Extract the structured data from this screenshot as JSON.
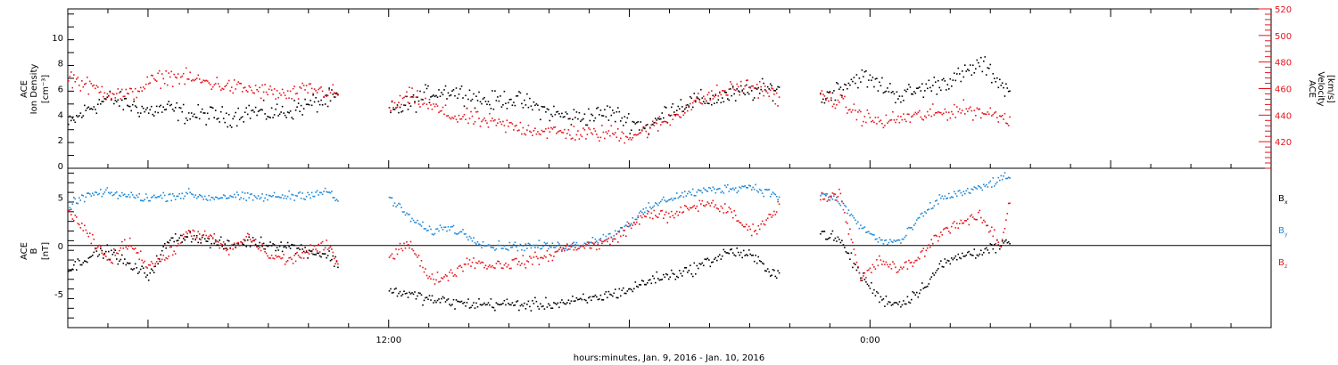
{
  "xlabel": "hours:minutes, Jan.  9, 2016 - Jan. 10, 2016",
  "colors": {
    "black": "#000000",
    "red": "#e8141b",
    "blue": "#1e88d8"
  },
  "chart_data": [
    {
      "type": "scatter",
      "panel": "top",
      "xlim": [
        0,
        30
      ],
      "x_tick_labels": [
        {
          "x": 8,
          "label": "12:00"
        },
        {
          "x": 20,
          "label": "0:00"
        }
      ],
      "left_axis": {
        "label_lines": [
          "ACE",
          "Ion Density"
        ],
        "unit": "[cm⁻³]",
        "ylim": [
          -0.2,
          12.2
        ],
        "ticks": [
          0,
          2,
          4,
          6,
          8,
          10
        ],
        "color": "#000000"
      },
      "right_axis": {
        "label_lines": [
          "ACE",
          "Velocity"
        ],
        "unit": "[km/s]",
        "ylim": [
          400,
          520
        ],
        "ticks": [
          420,
          440,
          460,
          480,
          500,
          520
        ],
        "color": "#e8141b"
      },
      "series": [
        {
          "axis": "left",
          "color": "#000000",
          "spread": 1.1,
          "density": 30,
          "segments": [
            {
              "x": [
                0,
                0.5,
                1,
                1.5,
                2,
                2.5,
                3,
                3.5,
                4,
                4.5,
                5,
                5.5,
                6,
                6.5,
                6.75
              ],
              "y": [
                3.2,
                4.5,
                5.3,
                4.8,
                4.3,
                4.5,
                4.0,
                4.0,
                3.8,
                4.3,
                4.1,
                4.3,
                4.8,
                5.2,
                5.5
              ]
            },
            {
              "x": [
                8,
                8.5,
                9,
                9.5,
                10,
                10.5,
                11,
                11.5,
                12,
                12.5,
                13,
                13.5,
                14,
                14.5,
                15,
                15.5,
                16,
                16.5,
                17,
                17.5,
                17.75
              ],
              "y": [
                4.2,
                4.8,
                5.7,
                5.9,
                5.5,
                5.0,
                5.3,
                4.8,
                4.2,
                3.8,
                3.9,
                4.2,
                3.5,
                3.0,
                4.5,
                5.0,
                5.2,
                5.5,
                5.8,
                6.0,
                6.2
              ]
            },
            {
              "x": [
                18.75,
                19.25,
                19.75,
                20.25,
                20.75,
                21.25,
                21.75,
                22.25,
                22.75,
                23.25,
                23.5
              ],
              "y": [
                5.2,
                6.2,
                7.0,
                6.3,
                5.5,
                6.0,
                6.5,
                7.0,
                8.0,
                6.5,
                5.5
              ]
            }
          ]
        },
        {
          "axis": "right",
          "color": "#e8141b",
          "spread": 9,
          "density": 30,
          "segments": [
            {
              "x": [
                0,
                0.5,
                1,
                1.5,
                2,
                2.5,
                3,
                3.5,
                4,
                4.5,
                5,
                5.5,
                6,
                6.5,
                6.75
              ],
              "y": [
                470,
                462,
                458,
                455,
                465,
                470,
                468,
                465,
                462,
                460,
                458,
                455,
                460,
                458,
                455
              ]
            },
            {
              "x": [
                8,
                8.5,
                9,
                9.5,
                10,
                10.5,
                11,
                11.5,
                12,
                12.5,
                13,
                13.5,
                14,
                14.5,
                15,
                15.5,
                16,
                16.5,
                17,
                17.5,
                17.75
              ],
              "y": [
                445,
                455,
                448,
                440,
                438,
                435,
                432,
                430,
                428,
                427,
                426,
                427,
                425,
                430,
                438,
                448,
                455,
                460,
                463,
                458,
                450
              ]
            },
            {
              "x": [
                18.75,
                19.25,
                19.75,
                20.25,
                20.75,
                21.25,
                21.75,
                22.25,
                22.75,
                23.25,
                23.5
              ],
              "y": [
                455,
                450,
                440,
                435,
                438,
                440,
                442,
                445,
                443,
                440,
                438
              ]
            }
          ]
        }
      ]
    },
    {
      "type": "scatter",
      "panel": "bottom",
      "xlim": [
        0,
        30
      ],
      "left_axis": {
        "label_lines": [
          "ACE",
          "B"
        ],
        "unit": "[nT]",
        "ylim": [
          -8.5,
          8
        ],
        "ticks": [
          -5,
          0,
          5
        ],
        "color": "#000000"
      },
      "legend": [
        {
          "label": "B",
          "sub": "x",
          "color": "#000000"
        },
        {
          "label": "B",
          "sub": "y",
          "color": "#1e88d8"
        },
        {
          "label": "B",
          "sub": "z",
          "color": "#e8141b"
        }
      ],
      "series": [
        {
          "name": "Bx",
          "axis": "left",
          "color": "#000000",
          "spread": 0.9,
          "density": 30,
          "segments": [
            {
              "x": [
                0,
                0.5,
                1,
                1.5,
                2,
                2.5,
                3,
                3.5,
                4,
                4.5,
                5,
                5.5,
                6,
                6.5,
                6.75
              ],
              "y": [
                -2.5,
                -1.0,
                -0.5,
                -2.0,
                -3.0,
                0.5,
                1.2,
                0.5,
                0.0,
                0.5,
                0.2,
                0.0,
                -0.5,
                -1.0,
                -2.0
              ]
            },
            {
              "x": [
                8,
                8.5,
                9,
                9.5,
                10,
                10.5,
                11,
                11.5,
                12,
                12.5,
                13,
                13.5,
                14,
                14.5,
                15,
                15.5,
                16,
                16.5,
                17,
                17.5,
                17.75
              ],
              "y": [
                -4.5,
                -5.0,
                -5.5,
                -5.8,
                -6.0,
                -6.0,
                -6.0,
                -6.1,
                -6.0,
                -5.8,
                -5.5,
                -5.0,
                -4.5,
                -3.5,
                -3.0,
                -2.5,
                -1.5,
                -0.5,
                -1.0,
                -2.5,
                -3.0
              ]
            },
            {
              "x": [
                18.75,
                19.25,
                19.75,
                20.25,
                20.75,
                21.25,
                21.75,
                22.25,
                22.75,
                23.25,
                23.5
              ],
              "y": [
                1.5,
                0.5,
                -3.0,
                -5.5,
                -6.0,
                -4.5,
                -2.0,
                -1.0,
                -0.5,
                0.0,
                0.5
              ]
            }
          ]
        },
        {
          "name": "By",
          "axis": "left",
          "color": "#1e88d8",
          "spread": 0.7,
          "density": 30,
          "segments": [
            {
              "x": [
                0,
                0.5,
                1,
                1.5,
                2,
                2.5,
                3,
                3.5,
                4,
                4.5,
                5,
                5.5,
                6,
                6.5,
                6.75
              ],
              "y": [
                4.2,
                5.3,
                5.5,
                5.2,
                5.0,
                5.2,
                5.4,
                5.0,
                5.2,
                5.0,
                5.1,
                5.2,
                5.4,
                5.6,
                4.5
              ]
            },
            {
              "x": [
                8,
                8.5,
                9,
                9.5,
                10,
                10.5,
                11,
                11.5,
                12,
                12.5,
                13,
                13.5,
                14,
                14.5,
                15,
                15.5,
                16,
                16.5,
                17,
                17.5,
                17.75
              ],
              "y": [
                5.0,
                3.0,
                1.5,
                2.0,
                1.0,
                0.0,
                0.0,
                0.0,
                0.0,
                0.0,
                0.5,
                1.0,
                2.5,
                4.0,
                5.0,
                5.5,
                5.8,
                6.0,
                6.2,
                5.5,
                5.0
              ]
            },
            {
              "x": [
                18.75,
                19.25,
                19.75,
                20.25,
                20.75,
                21.25,
                21.75,
                22.25,
                22.75,
                23.25,
                23.5
              ],
              "y": [
                5.5,
                4.5,
                2.0,
                0.5,
                0.5,
                3.0,
                5.0,
                5.5,
                6.0,
                7.0,
                7.0
              ]
            }
          ]
        },
        {
          "name": "Bz",
          "axis": "left",
          "color": "#e8141b",
          "spread": 0.9,
          "density": 30,
          "segments": [
            {
              "x": [
                0,
                0.5,
                1,
                1.5,
                2,
                2.5,
                3,
                3.5,
                4,
                4.5,
                5,
                5.5,
                6,
                6.5,
                6.75
              ],
              "y": [
                3.8,
                1.0,
                -1.5,
                0.5,
                -2.0,
                -1.0,
                1.5,
                1.0,
                -0.5,
                1.0,
                -1.0,
                -1.5,
                -0.5,
                0.0,
                -2.5
              ]
            },
            {
              "x": [
                8,
                8.5,
                9,
                9.5,
                10,
                10.5,
                11,
                11.5,
                12,
                12.5,
                13,
                13.5,
                14,
                14.5,
                15,
                15.5,
                16,
                16.5,
                17,
                17.5,
                17.75
              ],
              "y": [
                -1.0,
                0.5,
                -3.5,
                -3.0,
                -1.5,
                -2.0,
                -1.8,
                -1.5,
                -1.0,
                0.0,
                0.0,
                0.5,
                2.0,
                3.5,
                3.0,
                4.0,
                4.5,
                3.5,
                1.5,
                3.0,
                4.5
              ]
            },
            {
              "x": [
                18.75,
                19.25,
                19.75,
                20.25,
                20.75,
                21.25,
                21.75,
                22.25,
                22.75,
                23.25,
                23.5
              ],
              "y": [
                5.0,
                5.5,
                -3.5,
                -1.5,
                -2.5,
                -1.0,
                1.5,
                2.5,
                3.0,
                0.0,
                5.5
              ]
            }
          ]
        }
      ]
    }
  ]
}
